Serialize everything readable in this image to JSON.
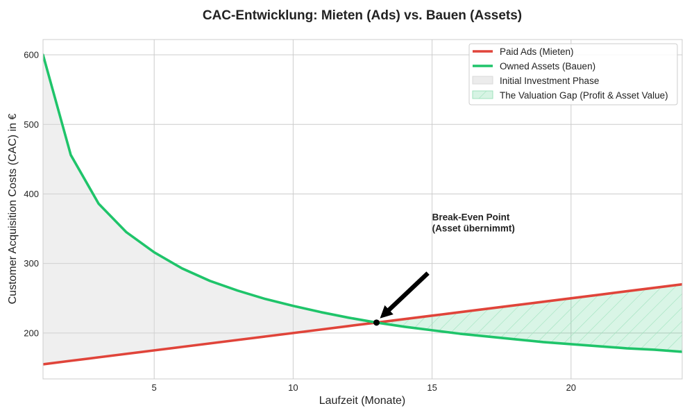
{
  "chart_data": {
    "type": "line",
    "title": "CAC-Entwicklung: Mieten (Ads) vs. Bauen (Assets)",
    "xlabel": "Laufzeit (Monate)",
    "ylabel": "Customer Acquisition Costs (CAC) in €",
    "xlim": [
      1,
      24
    ],
    "ylim": [
      134,
      622
    ],
    "x_ticks": [
      5,
      10,
      15,
      20
    ],
    "y_ticks": [
      200,
      300,
      400,
      500,
      600
    ],
    "grid": true,
    "legend_position": "top-right",
    "x": [
      1,
      2,
      3,
      4,
      5,
      6,
      7,
      8,
      9,
      10,
      11,
      12,
      13,
      14,
      15,
      16,
      17,
      18,
      19,
      20,
      21,
      22,
      23,
      24
    ],
    "series": [
      {
        "name": "Paid Ads (Mieten)",
        "color": "#e0443a",
        "values": [
          155,
          160,
          165,
          170,
          175,
          180,
          185,
          190,
          195,
          200,
          205,
          210,
          215,
          220,
          225,
          230,
          235,
          240,
          245,
          250,
          255,
          260,
          265,
          270
        ]
      },
      {
        "name": "Owned Assets (Bauen)",
        "color": "#1fc46a",
        "values": [
          600,
          456,
          386,
          345,
          316,
          293,
          275,
          261,
          249,
          239,
          230,
          222,
          215,
          209,
          204,
          199,
          195,
          191,
          187,
          184,
          181,
          178,
          176,
          173
        ]
      }
    ],
    "areas": [
      {
        "name": "Initial Investment Phase",
        "color": "#d9d9d9",
        "x_range": [
          1,
          13
        ]
      },
      {
        "name": "The Valuation Gap (Profit & Asset Value)",
        "color": "#1fc46a",
        "x_range": [
          13,
          24
        ],
        "hatch": true
      }
    ],
    "annotation": {
      "line1": "Break-Even Point",
      "line2": "(Asset übernimmt)",
      "point": {
        "x": 13,
        "y": 215
      },
      "text_at": {
        "x": 15,
        "y": 330
      }
    }
  }
}
